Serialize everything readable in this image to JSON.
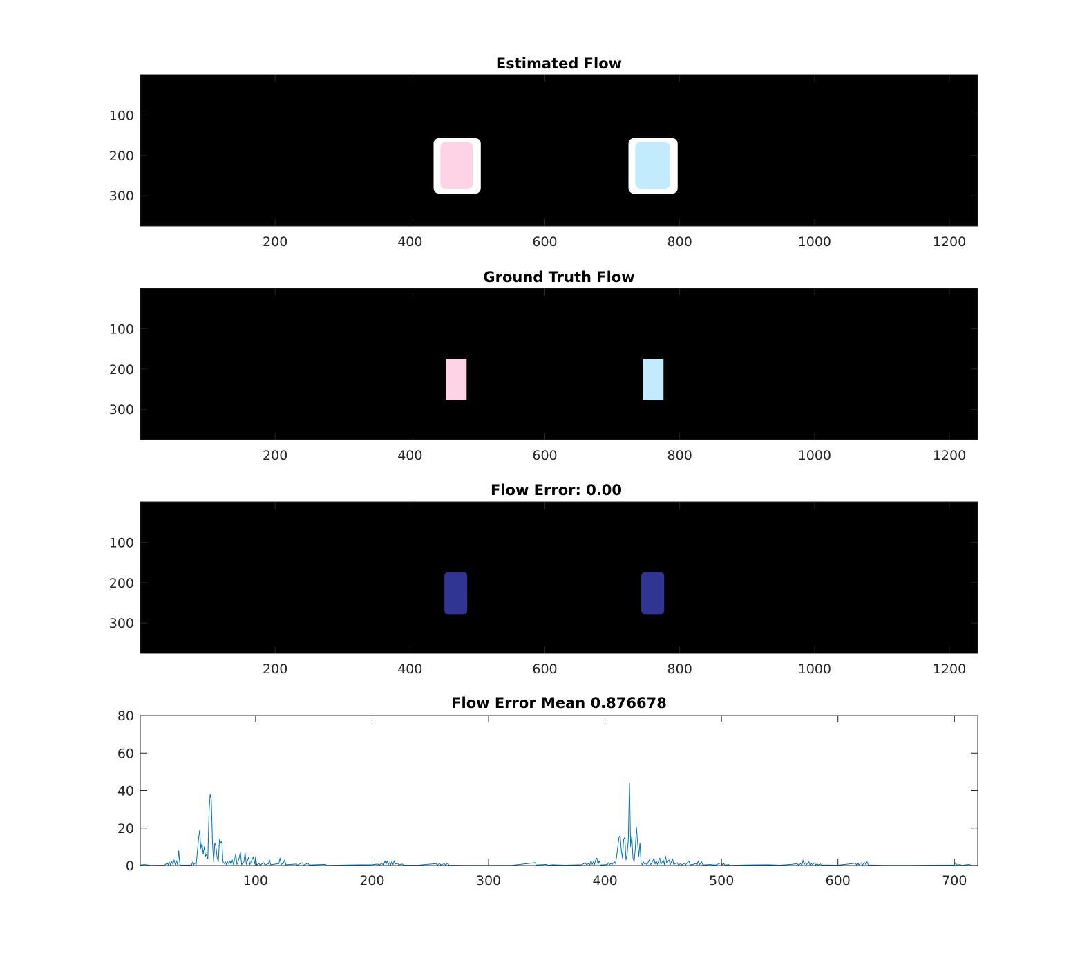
{
  "figure": {
    "background": "#ffffff",
    "panels": [
      {
        "title": "Estimated Flow",
        "kind": "image",
        "background_color": "#000000",
        "x_range": [
          0,
          1242
        ],
        "y_range": [
          0,
          375
        ],
        "x_ticks": [
          200,
          400,
          600,
          800,
          1000,
          1200
        ],
        "y_ticks": [
          100,
          200,
          300
        ],
        "blobs": [
          {
            "x": [
              435,
              505
            ],
            "y": [
              157,
              295
            ],
            "color": "#ffffff",
            "rounded": true
          },
          {
            "x": [
              445,
              493
            ],
            "y": [
              167,
              283
            ],
            "color": "#ffd3e6",
            "rounded": true
          },
          {
            "x": [
              724,
              797
            ],
            "y": [
              157,
              295
            ],
            "color": "#ffffff",
            "rounded": true
          },
          {
            "x": [
              734,
              786
            ],
            "y": [
              167,
              283
            ],
            "color": "#c3ebfe",
            "rounded": true
          }
        ]
      },
      {
        "title": "Ground Truth Flow",
        "kind": "image",
        "background_color": "#000000",
        "x_range": [
          0,
          1242
        ],
        "y_range": [
          0,
          375
        ],
        "x_ticks": [
          200,
          400,
          600,
          800,
          1000,
          1200
        ],
        "y_ticks": [
          100,
          200,
          300
        ],
        "blobs": [
          {
            "x": [
              453,
              484
            ],
            "y": [
              175,
              277
            ],
            "color": "#ffd3e6",
            "rounded": false
          },
          {
            "x": [
              745,
              776
            ],
            "y": [
              175,
              277
            ],
            "color": "#c3ebfe",
            "rounded": false
          }
        ]
      },
      {
        "title": "Flow Error: 0.00",
        "kind": "image",
        "background_color": "#000000",
        "x_range": [
          0,
          1242
        ],
        "y_range": [
          0,
          375
        ],
        "x_ticks": [
          200,
          400,
          600,
          800,
          1000,
          1200
        ],
        "y_ticks": [
          100,
          200,
          300
        ],
        "blobs": [
          {
            "x": [
              451,
              485
            ],
            "y": [
              174,
              278
            ],
            "color": "#303593",
            "rounded": true
          },
          {
            "x": [
              743,
              777
            ],
            "y": [
              174,
              278
            ],
            "color": "#303593",
            "rounded": true
          }
        ]
      }
    ]
  },
  "chart_data": {
    "type": "line",
    "title": "Flow Error Mean 0.876678",
    "xlabel": "",
    "ylabel": "",
    "xlim": [
      1,
      720
    ],
    "ylim": [
      0,
      80
    ],
    "x_ticks": [
      100,
      200,
      300,
      400,
      500,
      600,
      700
    ],
    "y_ticks": [
      0,
      20,
      40,
      60,
      80
    ],
    "color": "#0072bd",
    "grid": false,
    "series": [
      {
        "points": [
          [
            1,
            0.3
          ],
          [
            5,
            0.5
          ],
          [
            10,
            0.1
          ],
          [
            22,
            0.2
          ],
          [
            24,
            1.5
          ],
          [
            25,
            0.4
          ],
          [
            26,
            1.8
          ],
          [
            27,
            0.3
          ],
          [
            28,
            2.2
          ],
          [
            29,
            0.6
          ],
          [
            30,
            3.0
          ],
          [
            31,
            0.5
          ],
          [
            32,
            2.5
          ],
          [
            33,
            0.4
          ],
          [
            34,
            7.8
          ],
          [
            35,
            0.5
          ],
          [
            36,
            0.2
          ],
          [
            45,
            0.3
          ],
          [
            46,
            1.8
          ],
          [
            47,
            0.5
          ],
          [
            48,
            1.5
          ],
          [
            49,
            0.4
          ],
          [
            51,
            14
          ],
          [
            52,
            18.8
          ],
          [
            53,
            9
          ],
          [
            54,
            12
          ],
          [
            55,
            6
          ],
          [
            56,
            10
          ],
          [
            57,
            5
          ],
          [
            58,
            6
          ],
          [
            59,
            3.5
          ],
          [
            60,
            28
          ],
          [
            61,
            38
          ],
          [
            62,
            35
          ],
          [
            63,
            12
          ],
          [
            64,
            2
          ],
          [
            65,
            12
          ],
          [
            66,
            10
          ],
          [
            67,
            4
          ],
          [
            68,
            2
          ],
          [
            69,
            14
          ],
          [
            70,
            12
          ],
          [
            71,
            13
          ],
          [
            72,
            2
          ],
          [
            73,
            1
          ],
          [
            74,
            2
          ],
          [
            75,
            0.5
          ],
          [
            76,
            2
          ],
          [
            77,
            0.8
          ],
          [
            78,
            2.5
          ],
          [
            79,
            0.5
          ],
          [
            80,
            3
          ],
          [
            81,
            0.5
          ],
          [
            83,
            6.2
          ],
          [
            84,
            0.6
          ],
          [
            85,
            2
          ],
          [
            87,
            7
          ],
          [
            88,
            0.5
          ],
          [
            90,
            2
          ],
          [
            91,
            7
          ],
          [
            92,
            0.6
          ],
          [
            94,
            4.5
          ],
          [
            95,
            0.5
          ],
          [
            98,
            4.5
          ],
          [
            99,
            0.8
          ],
          [
            100,
            4.5
          ],
          [
            101,
            0.3
          ],
          [
            103,
            1
          ],
          [
            104,
            0.2
          ],
          [
            107,
            1.5
          ],
          [
            108,
            0.3
          ],
          [
            111,
            1
          ],
          [
            112,
            3
          ],
          [
            113,
            0.4
          ],
          [
            120,
            1
          ],
          [
            121,
            4
          ],
          [
            122,
            0.5
          ],
          [
            124,
            1.5
          ],
          [
            125,
            3
          ],
          [
            126,
            0.4
          ],
          [
            135,
            0.8
          ],
          [
            136,
            0.2
          ],
          [
            140,
            1.5
          ],
          [
            141,
            0.2
          ],
          [
            145,
            1.2
          ],
          [
            146,
            0.3
          ],
          [
            160,
            0.6
          ],
          [
            161,
            0.1
          ],
          [
            180,
            0.3
          ],
          [
            200,
            0.4
          ],
          [
            205,
            0.8
          ],
          [
            206,
            0.2
          ],
          [
            208,
            1
          ],
          [
            210,
            0.4
          ],
          [
            211,
            2.5
          ],
          [
            212,
            0.6
          ],
          [
            213,
            2.5
          ],
          [
            214,
            0.5
          ],
          [
            215,
            1.5
          ],
          [
            216,
            0.4
          ],
          [
            217,
            2.2
          ],
          [
            218,
            0.5
          ],
          [
            219,
            2.5
          ],
          [
            220,
            0.8
          ],
          [
            222,
            1.2
          ],
          [
            223,
            0.3
          ],
          [
            226,
            0.8
          ],
          [
            227,
            0.2
          ],
          [
            240,
            0.2
          ],
          [
            255,
            1
          ],
          [
            256,
            0.2
          ],
          [
            258,
            1.2
          ],
          [
            259,
            0.3
          ],
          [
            262,
            1
          ],
          [
            263,
            0.3
          ],
          [
            265,
            1.2
          ],
          [
            266,
            0.2
          ],
          [
            280,
            0.1
          ],
          [
            300,
            0.1
          ],
          [
            320,
            0.1
          ],
          [
            340,
            1.5
          ],
          [
            341,
            0.3
          ],
          [
            350,
            0.6
          ],
          [
            351,
            0.1
          ],
          [
            355,
            0.4
          ],
          [
            365,
            0.2
          ],
          [
            380,
            0.4
          ],
          [
            383,
            1.5
          ],
          [
            384,
            0.5
          ],
          [
            386,
            1
          ],
          [
            387,
            0.4
          ],
          [
            388,
            2.5
          ],
          [
            389,
            0.6
          ],
          [
            390,
            2
          ],
          [
            391,
            0.5
          ],
          [
            392,
            3
          ],
          [
            393,
            4
          ],
          [
            394,
            0.5
          ],
          [
            395,
            2.5
          ],
          [
            396,
            0.3
          ],
          [
            402,
            0.5
          ],
          [
            403,
            1.5
          ],
          [
            404,
            0.5
          ],
          [
            405,
            1
          ],
          [
            406,
            0.5
          ],
          [
            408,
            2
          ],
          [
            409,
            1
          ],
          [
            410,
            5
          ],
          [
            411,
            10
          ],
          [
            412,
            15
          ],
          [
            413,
            16
          ],
          [
            414,
            8
          ],
          [
            415,
            4
          ],
          [
            416,
            14
          ],
          [
            417,
            15
          ],
          [
            418,
            3
          ],
          [
            419,
            6
          ],
          [
            420,
            14
          ],
          [
            421,
            44
          ],
          [
            422,
            10
          ],
          [
            423,
            16
          ],
          [
            424,
            4
          ],
          [
            425,
            2
          ],
          [
            426,
            9
          ],
          [
            427,
            20.5
          ],
          [
            428,
            12
          ],
          [
            429,
            5
          ],
          [
            430,
            12
          ],
          [
            431,
            1
          ],
          [
            432,
            0.5
          ],
          [
            433,
            2
          ],
          [
            434,
            0.8
          ],
          [
            435,
            1.2
          ],
          [
            436,
            0.4
          ],
          [
            438,
            3
          ],
          [
            439,
            0.5
          ],
          [
            440,
            1
          ],
          [
            442,
            4
          ],
          [
            443,
            0.8
          ],
          [
            444,
            2.5
          ],
          [
            445,
            0.6
          ],
          [
            447,
            4
          ],
          [
            448,
            0.5
          ],
          [
            450,
            3
          ],
          [
            451,
            0.5
          ],
          [
            452,
            5
          ],
          [
            453,
            1.2
          ],
          [
            455,
            3
          ],
          [
            456,
            0.5
          ],
          [
            458,
            3.5
          ],
          [
            459,
            0.6
          ],
          [
            462,
            1.5
          ],
          [
            463,
            0.3
          ],
          [
            465,
            1
          ],
          [
            466,
            0.3
          ],
          [
            468,
            1.2
          ],
          [
            469,
            0.3
          ],
          [
            472,
            2.5
          ],
          [
            473,
            0.4
          ],
          [
            475,
            0.5
          ],
          [
            478,
            1
          ],
          [
            479,
            0.3
          ],
          [
            480,
            2.5
          ],
          [
            481,
            0.4
          ],
          [
            483,
            2
          ],
          [
            484,
            0.3
          ],
          [
            490,
            0.5
          ],
          [
            495,
            0.3
          ],
          [
            500,
            1.5
          ],
          [
            501,
            0.3
          ],
          [
            502,
            1
          ],
          [
            503,
            0.2
          ],
          [
            506,
            0.5
          ],
          [
            507,
            0.1
          ],
          [
            520,
            0.3
          ],
          [
            540,
            0.4
          ],
          [
            550,
            0.2
          ],
          [
            560,
            0.6
          ],
          [
            565,
            1
          ],
          [
            566,
            0.3
          ],
          [
            568,
            1
          ],
          [
            569,
            0.2
          ],
          [
            570,
            2.8
          ],
          [
            571,
            0.5
          ],
          [
            572,
            1.5
          ],
          [
            573,
            0.5
          ],
          [
            575,
            2
          ],
          [
            576,
            0.4
          ],
          [
            577,
            1.2
          ],
          [
            578,
            0.5
          ],
          [
            580,
            1.5
          ],
          [
            581,
            0.3
          ],
          [
            582,
            1
          ],
          [
            583,
            0.3
          ],
          [
            585,
            0.8
          ],
          [
            586,
            0.2
          ],
          [
            590,
            0.3
          ],
          [
            600,
            0.2
          ],
          [
            615,
            1.2
          ],
          [
            616,
            0.4
          ],
          [
            617,
            1.5
          ],
          [
            618,
            0.4
          ],
          [
            620,
            1.5
          ],
          [
            621,
            0.3
          ],
          [
            623,
            1.5
          ],
          [
            624,
            0.5
          ],
          [
            625,
            2
          ],
          [
            626,
            0.3
          ],
          [
            640,
            0.1
          ],
          [
            660,
            0.1
          ],
          [
            680,
            0.2
          ],
          [
            700,
            0.3
          ],
          [
            701,
            1.5
          ],
          [
            702,
            0.3
          ],
          [
            705,
            0.5
          ],
          [
            706,
            0.1
          ],
          [
            713,
            0.6
          ],
          [
            714,
            0.1
          ],
          [
            720,
            0.1
          ]
        ]
      }
    ]
  }
}
